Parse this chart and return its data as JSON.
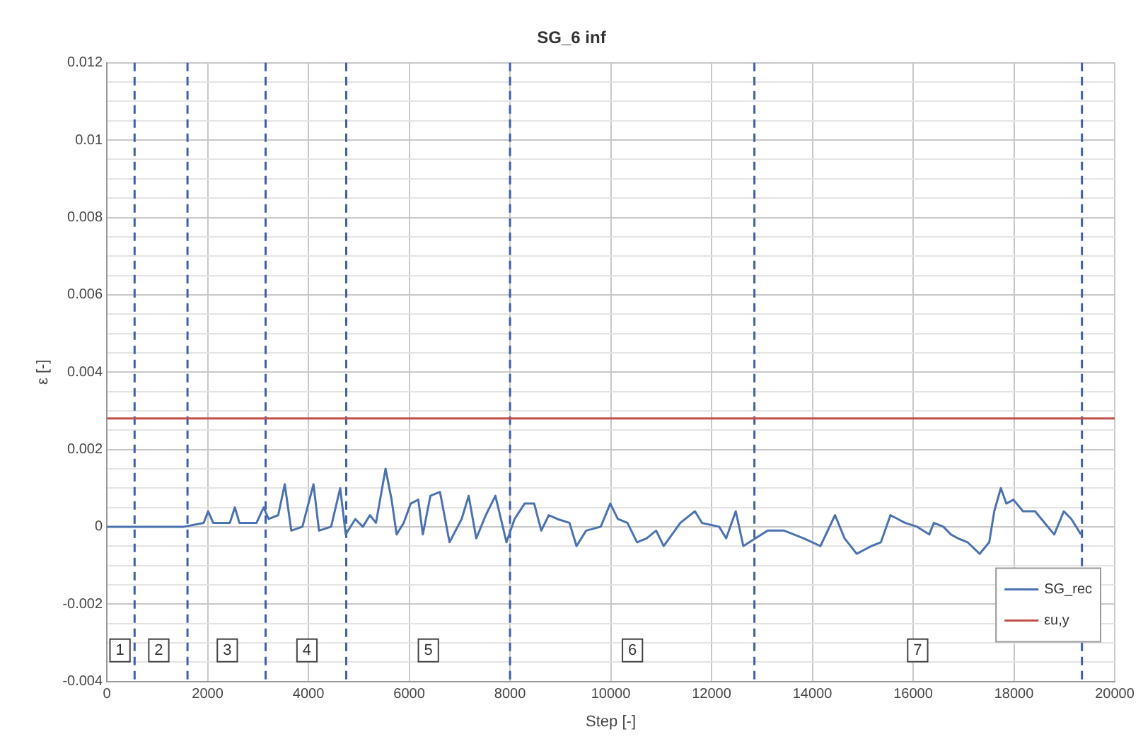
{
  "chart_data": {
    "type": "line",
    "title": "SG_6 inf",
    "xlabel": "Step [-]",
    "ylabel": "ε [-]",
    "xlim": [
      0,
      20000
    ],
    "xticks": [
      0,
      2000,
      4000,
      6000,
      8000,
      10000,
      12000,
      14000,
      16000,
      18000,
      20000
    ],
    "ylim": [
      -0.004,
      0.012
    ],
    "yticks": [
      -0.004,
      {
        "value": -0.0035,
        "label": null
      },
      {
        "value": -0.003,
        "label": null
      },
      {
        "value": -0.0025,
        "label": null
      },
      -0.002,
      {
        "value": -0.0015,
        "label": null
      },
      {
        "value": -0.001,
        "label": null
      },
      {
        "value": -0.0005,
        "label": null
      },
      0,
      {
        "value": 0.0005,
        "label": null
      },
      {
        "value": 0.001,
        "label": null
      },
      {
        "value": 0.0015,
        "label": null
      },
      0.002,
      {
        "value": 0.0025,
        "label": null
      },
      {
        "value": 0.003,
        "label": null
      },
      {
        "value": 0.0035,
        "label": null
      },
      0.004,
      {
        "value": 0.0045,
        "label": null
      },
      {
        "value": 0.005,
        "label": null
      },
      {
        "value": 0.0055,
        "label": null
      },
      0.006,
      {
        "value": 0.0065,
        "label": null
      },
      {
        "value": 0.007,
        "label": null
      },
      {
        "value": 0.0075,
        "label": null
      },
      0.008,
      {
        "value": 0.0085,
        "label": null
      },
      {
        "value": 0.009,
        "label": null
      },
      {
        "value": 0.0095,
        "label": null
      },
      0.01,
      {
        "value": 0.0105,
        "label": null
      },
      {
        "value": 0.011,
        "label": null
      },
      {
        "value": 0.0115,
        "label": null
      },
      0.012
    ],
    "grid": true,
    "legend": "bottom right",
    "marker": "none",
    "line_style": "solid",
    "series": [
      {
        "name": "SG_rec",
        "color": "#4a72b0",
        "x": [
          0,
          1530,
          1920,
          2010,
          2110,
          2440,
          2540,
          2630,
          2970,
          3110,
          3210,
          3400,
          3530,
          3660,
          3880,
          4100,
          4210,
          4450,
          4630,
          4740,
          4930,
          5080,
          5220,
          5340,
          5530,
          5650,
          5750,
          5890,
          6030,
          6180,
          6270,
          6420,
          6610,
          6800,
          7040,
          7180,
          7330,
          7520,
          7710,
          7930,
          8090,
          8290,
          8480,
          8620,
          8770,
          8940,
          9180,
          9320,
          9510,
          9800,
          9990,
          10140,
          10330,
          10520,
          10710,
          10900,
          11050,
          11380,
          11670,
          11810,
          12150,
          12290,
          12480,
          12630,
          12870,
          13110,
          13440,
          13830,
          14160,
          14450,
          14640,
          14880,
          15170,
          15360,
          15550,
          15840,
          16080,
          16320,
          16410,
          16600,
          16750,
          16890,
          17080,
          17320,
          17510,
          17610,
          17740,
          17850,
          17990,
          18180,
          18420,
          18610,
          18800,
          18990,
          19140,
          19330
        ],
        "values": [
          0,
          0,
          0.0001,
          0.0004,
          0.0001,
          0.0001,
          0.0005,
          0.0001,
          0.0001,
          0.0005,
          0.0002,
          0.0003,
          0.0011,
          -0.0001,
          0,
          0.0011,
          -0.0001,
          0,
          0.001,
          -0.0002,
          0.0002,
          0,
          0.0003,
          0.0001,
          0.0015,
          0.0007,
          -0.0002,
          0.0001,
          0.0006,
          0.0007,
          -0.0002,
          0.0008,
          0.0009,
          -0.0004,
          0.0002,
          0.0008,
          -0.0003,
          0.0003,
          0.0008,
          -0.0004,
          0.0002,
          0.0006,
          0.0006,
          -0.0001,
          0.0003,
          0.0002,
          0.0001,
          -0.0005,
          -0.0001,
          0,
          0.0006,
          0.0002,
          0.0001,
          -0.0004,
          -0.0003,
          -0.0001,
          -0.0005,
          0.0001,
          0.0004,
          0.0001,
          0,
          -0.0003,
          0.0004,
          -0.0005,
          -0.0003,
          -0.0001,
          -0.0001,
          -0.0003,
          -0.0005,
          0.0003,
          -0.0003,
          -0.0007,
          -0.0005,
          -0.0004,
          0.0003,
          0.0001,
          0,
          -0.0002,
          0.0001,
          0,
          -0.0002,
          -0.0003,
          -0.0004,
          -0.0007,
          -0.0004,
          0.0004,
          0.001,
          0.0006,
          0.0007,
          0.0004,
          0.0004,
          0.0001,
          -0.0002,
          0.0004,
          0.0002,
          -0.0002
        ]
      },
      {
        "name": "εu,y",
        "color": "#c0504d",
        "x": [
          0,
          20000
        ],
        "values": [
          0.0028,
          0.0028
        ]
      }
    ],
    "ref_lines": [
      {
        "axis": "x",
        "value": 550,
        "color": "#3f5fa8",
        "line_style": "dashed"
      },
      {
        "axis": "x",
        "value": 1600,
        "color": "#3f5fa8",
        "line_style": "dashed"
      },
      {
        "axis": "x",
        "value": 3150,
        "color": "#3f5fa8",
        "line_style": "dashed"
      },
      {
        "axis": "x",
        "value": 4750,
        "color": "#3f5fa8",
        "line_style": "dashed"
      },
      {
        "axis": "x",
        "value": 8000,
        "color": "#3f5fa8",
        "line_style": "dashed"
      },
      {
        "axis": "x",
        "value": 12850,
        "color": "#3f5fa8",
        "line_style": "dashed"
      },
      {
        "axis": "x",
        "value": 19350,
        "color": "#3f5fa8",
        "line_style": "dashed"
      }
    ],
    "annotations": [
      {
        "text": "1",
        "x": 260,
        "y": -0.0032
      },
      {
        "text": "2",
        "x": 1030,
        "y": -0.0032
      },
      {
        "text": "3",
        "x": 2390,
        "y": -0.0032
      },
      {
        "text": "4",
        "x": 3970,
        "y": -0.0032
      },
      {
        "text": "5",
        "x": 6380,
        "y": -0.0032
      },
      {
        "text": "6",
        "x": 10430,
        "y": -0.0032
      },
      {
        "text": "7",
        "x": 16090,
        "y": -0.0032
      }
    ]
  }
}
